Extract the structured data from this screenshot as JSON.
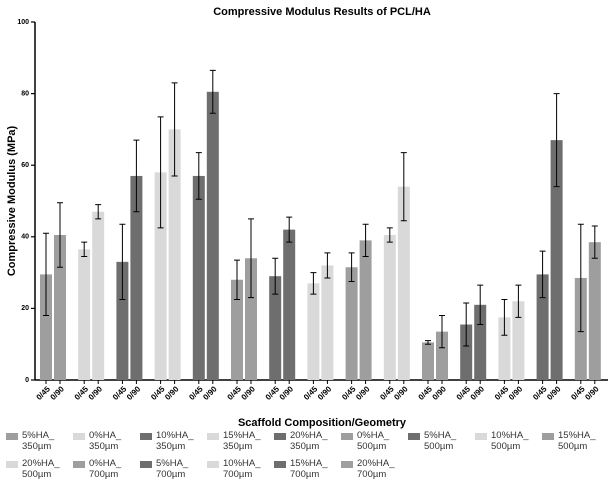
{
  "chart_data": {
    "type": "bar",
    "title": "Compressive Modulus Results of PCL/HA",
    "x_label": "Scaffold Composition/Geometry",
    "y_label": "Compressive Modulus (MPa)",
    "categories": [
      "0/45",
      "0/90"
    ],
    "ylim": [
      0,
      100
    ],
    "yticks": [
      0,
      20,
      40,
      60,
      80,
      100
    ],
    "series": [
      {
        "name": "5%HA_\n350µm",
        "color": "#9e9e9e",
        "values": [
          29.5,
          40.5
        ],
        "errors": [
          11.5,
          9
        ]
      },
      {
        "name": "0%HA_\n350µm",
        "color": "#d9d9d9",
        "values": [
          36.5,
          47
        ],
        "errors": [
          2,
          2
        ]
      },
      {
        "name": "10%HA_\n350µm",
        "color": "#6e6e6e",
        "values": [
          33,
          57
        ],
        "errors": [
          10.5,
          10
        ]
      },
      {
        "name": "15%HA_\n350µm",
        "color": "#d9d9d9",
        "values": [
          58,
          70
        ],
        "errors": [
          15.5,
          13
        ]
      },
      {
        "name": "20%HA_\n350µm",
        "color": "#6e6e6e",
        "values": [
          57,
          80.5
        ],
        "errors": [
          6.5,
          6
        ]
      },
      {
        "name": "0%HA_\n500µm",
        "color": "#9e9e9e",
        "values": [
          28,
          34
        ],
        "errors": [
          5.5,
          11
        ]
      },
      {
        "name": "5%HA_\n500µm",
        "color": "#6e6e6e",
        "values": [
          29,
          42
        ],
        "errors": [
          5,
          3.5
        ]
      },
      {
        "name": "10%HA_\n500µm",
        "color": "#d9d9d9",
        "values": [
          27,
          32
        ],
        "errors": [
          3,
          3.5
        ]
      },
      {
        "name": "15%HA_\n500µm",
        "color": "#9e9e9e",
        "values": [
          31.5,
          39
        ],
        "errors": [
          4,
          4.5
        ]
      },
      {
        "name": "20%HA_\n500µm",
        "color": "#d9d9d9",
        "values": [
          40.5,
          54
        ],
        "errors": [
          2,
          9.5
        ]
      },
      {
        "name": "0%HA_\n700µm",
        "color": "#9e9e9e",
        "values": [
          10.5,
          13.5
        ],
        "errors": [
          0.5,
          4.5
        ]
      },
      {
        "name": "5%HA_\n700µm",
        "color": "#6e6e6e",
        "values": [
          15.5,
          21
        ],
        "errors": [
          6,
          5.5
        ]
      },
      {
        "name": "10%HA_\n700µm",
        "color": "#d9d9d9",
        "values": [
          17.5,
          22
        ],
        "errors": [
          5,
          4.5
        ]
      },
      {
        "name": "15%HA_\n700µm",
        "color": "#6e6e6e",
        "values": [
          29.5,
          67
        ],
        "errors": [
          6.5,
          13
        ]
      },
      {
        "name": "20%HA_\n700µm",
        "color": "#9e9e9e",
        "values": [
          28.5,
          38.5
        ],
        "errors": [
          15,
          4.5
        ]
      }
    ]
  }
}
